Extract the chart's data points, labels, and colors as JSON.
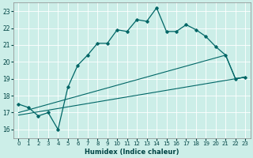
{
  "xlabel": "Humidex (Indice chaleur)",
  "bg_color": "#cceee8",
  "grid_color": "#ffffff",
  "line_color": "#006666",
  "xlim": [
    -0.5,
    23.5
  ],
  "ylim": [
    15.5,
    23.5
  ],
  "xticks": [
    0,
    1,
    2,
    3,
    4,
    5,
    6,
    7,
    8,
    9,
    10,
    11,
    12,
    13,
    14,
    15,
    16,
    17,
    18,
    19,
    20,
    21,
    22,
    23
  ],
  "yticks": [
    16,
    17,
    18,
    19,
    20,
    21,
    22,
    23
  ],
  "line1_x": [
    0,
    1,
    2,
    3,
    4,
    5,
    6,
    7,
    8,
    9,
    10,
    11,
    12,
    13,
    14,
    15,
    16,
    17,
    18,
    19,
    20,
    21,
    22,
    23
  ],
  "line1_y": [
    17.5,
    17.3,
    16.8,
    17.0,
    16.0,
    18.5,
    19.8,
    20.4,
    21.1,
    21.1,
    21.9,
    21.8,
    22.5,
    22.4,
    23.2,
    21.8,
    21.8,
    22.2,
    21.9,
    21.5,
    20.9,
    20.4,
    19.0,
    19.1
  ],
  "line2_x": [
    0,
    21,
    22,
    23
  ],
  "line2_y": [
    17.0,
    20.4,
    19.0,
    19.1
  ],
  "line3_x": [
    0,
    23
  ],
  "line3_y": [
    16.85,
    19.1
  ]
}
